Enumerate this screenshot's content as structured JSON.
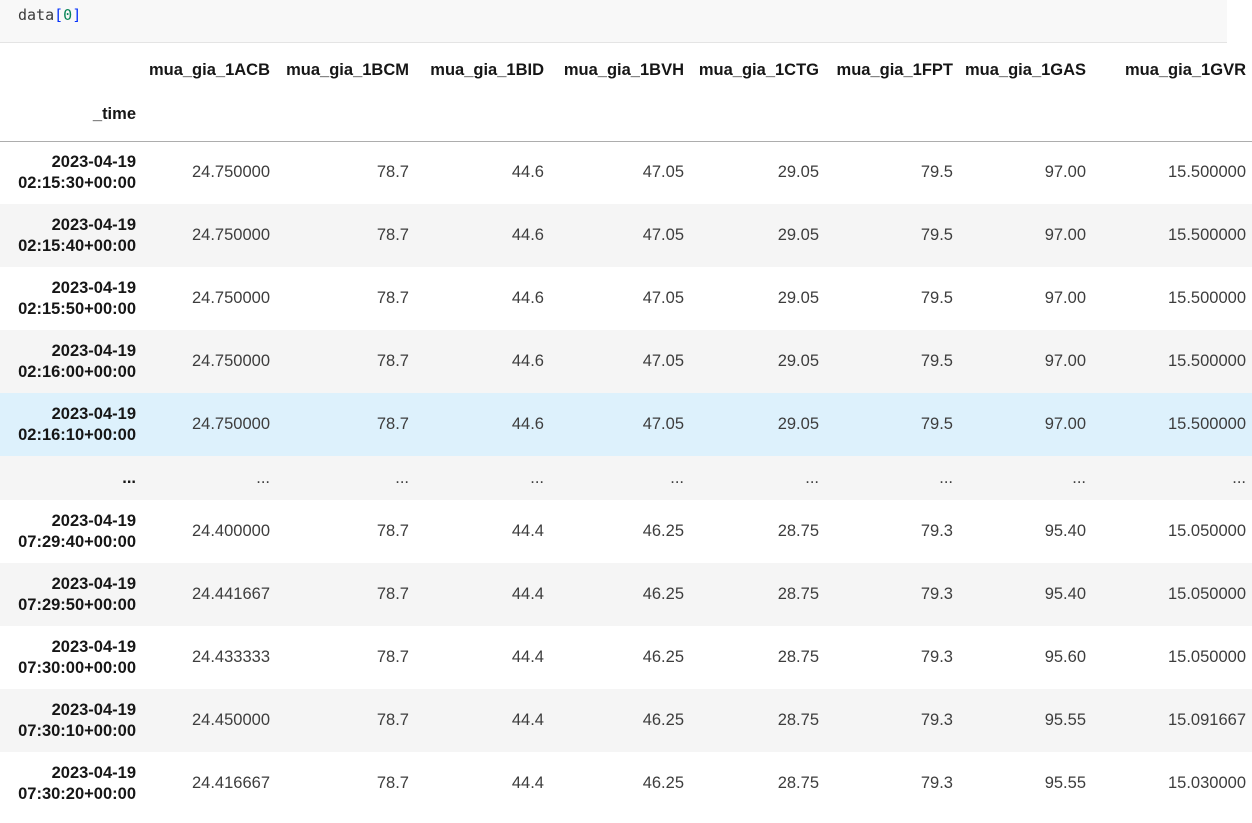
{
  "code_cell": {
    "tokens": [
      {
        "text": "data",
        "color": "#3b3b3b"
      },
      {
        "text": "[",
        "color": "#0431fa"
      },
      {
        "text": "0",
        "color": "#098658"
      },
      {
        "text": "]",
        "color": "#0431fa"
      }
    ]
  },
  "table": {
    "index_name": "_time",
    "columns": [
      "mua_gia_1ACB",
      "mua_gia_1BCM",
      "mua_gia_1BID",
      "mua_gia_1BVH",
      "mua_gia_1CTG",
      "mua_gia_1FPT",
      "mua_gia_1GAS",
      "mua_gia_1GVR"
    ],
    "rows": [
      {
        "date": "2023-04-19",
        "time": "02:15:30+00:00",
        "highlight": false,
        "ellipsis": false,
        "index": "",
        "values": [
          "24.750000",
          "78.7",
          "44.6",
          "47.05",
          "29.05",
          "79.5",
          "97.00",
          "15.500000"
        ]
      },
      {
        "date": "2023-04-19",
        "time": "02:15:40+00:00",
        "highlight": false,
        "ellipsis": false,
        "index": "",
        "values": [
          "24.750000",
          "78.7",
          "44.6",
          "47.05",
          "29.05",
          "79.5",
          "97.00",
          "15.500000"
        ]
      },
      {
        "date": "2023-04-19",
        "time": "02:15:50+00:00",
        "highlight": false,
        "ellipsis": false,
        "index": "",
        "values": [
          "24.750000",
          "78.7",
          "44.6",
          "47.05",
          "29.05",
          "79.5",
          "97.00",
          "15.500000"
        ]
      },
      {
        "date": "2023-04-19",
        "time": "02:16:00+00:00",
        "highlight": false,
        "ellipsis": false,
        "index": "",
        "values": [
          "24.750000",
          "78.7",
          "44.6",
          "47.05",
          "29.05",
          "79.5",
          "97.00",
          "15.500000"
        ]
      },
      {
        "date": "2023-04-19",
        "time": "02:16:10+00:00",
        "highlight": true,
        "ellipsis": false,
        "index": "",
        "values": [
          "24.750000",
          "78.7",
          "44.6",
          "47.05",
          "29.05",
          "79.5",
          "97.00",
          "15.500000"
        ]
      },
      {
        "date": "",
        "time": "",
        "highlight": false,
        "ellipsis": true,
        "index": "...",
        "values": [
          "...",
          "...",
          "...",
          "...",
          "...",
          "...",
          "...",
          "..."
        ]
      },
      {
        "date": "2023-04-19",
        "time": "07:29:40+00:00",
        "highlight": false,
        "ellipsis": false,
        "index": "",
        "values": [
          "24.400000",
          "78.7",
          "44.4",
          "46.25",
          "28.75",
          "79.3",
          "95.40",
          "15.050000"
        ]
      },
      {
        "date": "2023-04-19",
        "time": "07:29:50+00:00",
        "highlight": false,
        "ellipsis": false,
        "index": "",
        "values": [
          "24.441667",
          "78.7",
          "44.4",
          "46.25",
          "28.75",
          "79.3",
          "95.40",
          "15.050000"
        ]
      },
      {
        "date": "2023-04-19",
        "time": "07:30:00+00:00",
        "highlight": false,
        "ellipsis": false,
        "index": "",
        "values": [
          "24.433333",
          "78.7",
          "44.4",
          "46.25",
          "28.75",
          "79.3",
          "95.60",
          "15.050000"
        ]
      },
      {
        "date": "2023-04-19",
        "time": "07:30:10+00:00",
        "highlight": false,
        "ellipsis": false,
        "index": "",
        "values": [
          "24.450000",
          "78.7",
          "44.4",
          "46.25",
          "28.75",
          "79.3",
          "95.55",
          "15.091667"
        ]
      },
      {
        "date": "2023-04-19",
        "time": "07:30:20+00:00",
        "highlight": false,
        "ellipsis": false,
        "index": "",
        "values": [
          "24.416667",
          "78.7",
          "44.4",
          "46.25",
          "28.75",
          "79.3",
          "95.55",
          "15.030000"
        ]
      }
    ]
  },
  "colors": {
    "row_stripe": "#f5f5f5",
    "row_hover": "#ddf1fc",
    "header_border": "#adadad",
    "code_background": "#f8f8f8",
    "bracket_blue": "#0431fa",
    "number_green": "#098658",
    "cell_text": "#3d3d3d",
    "header_text": "#161616"
  }
}
